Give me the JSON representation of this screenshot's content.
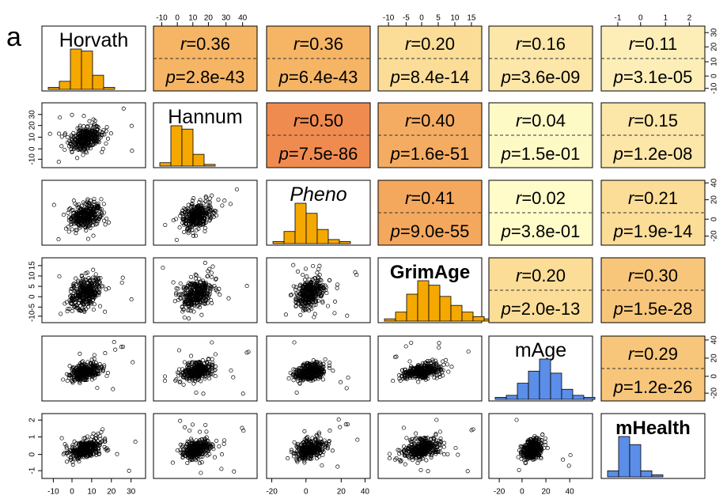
{
  "chart_data": {
    "type": "scatter",
    "panel_label": "a",
    "variables": [
      "Horvath",
      "Hannum",
      "Pheno",
      "GrimAge",
      "mAge",
      "mHealth"
    ],
    "label_styles": [
      "normal",
      "normal",
      "italic",
      "bold",
      "normal",
      "bold"
    ],
    "histogram_colors": [
      "#f5a800",
      "#f5a800",
      "#f5a800",
      "#f5a800",
      "#5b8ee8",
      "#5b8ee8"
    ],
    "histograms": [
      [
        1,
        4,
        20,
        19,
        7,
        1,
        0,
        0
      ],
      [
        2,
        24,
        22,
        7,
        1,
        0,
        0,
        0,
        0
      ],
      [
        1,
        6,
        20,
        15,
        7,
        2,
        1
      ],
      [
        1,
        4,
        12,
        18,
        16,
        11,
        7,
        4,
        2,
        1,
        1
      ],
      [
        1,
        2,
        8,
        14,
        20,
        13,
        5,
        2,
        1
      ],
      [
        3,
        20,
        16,
        3,
        1,
        0
      ]
    ],
    "correlations": [
      {
        "row": 0,
        "col": 1,
        "r": "0.36",
        "p": "2.8e-43",
        "color": "#f6b565"
      },
      {
        "row": 0,
        "col": 2,
        "r": "0.36",
        "p": "6.4e-43",
        "color": "#f6b565"
      },
      {
        "row": 0,
        "col": 3,
        "r": "0.20",
        "p": "8.4e-14",
        "color": "#fbdd97"
      },
      {
        "row": 0,
        "col": 4,
        "r": "0.16",
        "p": "3.6e-09",
        "color": "#fce6a8"
      },
      {
        "row": 0,
        "col": 5,
        "r": "0.11",
        "p": "3.1e-05",
        "color": "#fdeeb8"
      },
      {
        "row": 1,
        "col": 2,
        "r": "0.50",
        "p": "7.5e-86",
        "color": "#f08b50"
      },
      {
        "row": 1,
        "col": 3,
        "r": "0.40",
        "p": "1.6e-51",
        "color": "#f4ac62"
      },
      {
        "row": 1,
        "col": 4,
        "r": "0.04",
        "p": "1.5e-01",
        "color": "#fefac6"
      },
      {
        "row": 1,
        "col": 5,
        "r": "0.15",
        "p": "1.2e-08",
        "color": "#fce6a8"
      },
      {
        "row": 2,
        "col": 3,
        "r": "0.41",
        "p": "9.0e-55",
        "color": "#f4a85e"
      },
      {
        "row": 2,
        "col": 4,
        "r": "0.02",
        "p": "3.8e-01",
        "color": "#fffcc9"
      },
      {
        "row": 2,
        "col": 5,
        "r": "0.21",
        "p": "1.9e-14",
        "color": "#fbdd97"
      },
      {
        "row": 3,
        "col": 4,
        "r": "0.20",
        "p": "2.0e-13",
        "color": "#fbdd97"
      },
      {
        "row": 3,
        "col": 5,
        "r": "0.30",
        "p": "1.5e-28",
        "color": "#f8c67a"
      },
      {
        "row": 4,
        "col": 5,
        "r": "0.29",
        "p": "1.2e-26",
        "color": "#f8c67a"
      }
    ],
    "scatter_spread": {
      "Horvath": 0.45,
      "Hannum": 0.45,
      "Pheno": 0.45,
      "GrimAge": 0.55,
      "mAge": 0.3,
      "mHealth": 0.35
    },
    "axes": {
      "top": [
        {
          "col": 1,
          "ticks": [
            "-10",
            "0",
            "10",
            "20",
            "30",
            "40"
          ],
          "fracs": [
            0.08,
            0.23,
            0.38,
            0.53,
            0.7,
            0.86
          ]
        },
        {
          "col": 3,
          "ticks": [
            "-10",
            "-5",
            "0",
            "5",
            "10",
            "15"
          ],
          "fracs": [
            0.1,
            0.27,
            0.42,
            0.58,
            0.74,
            0.9
          ]
        },
        {
          "col": 5,
          "ticks": [
            "-1",
            "0",
            "1",
            "2"
          ],
          "fracs": [
            0.16,
            0.38,
            0.62,
            0.85
          ]
        }
      ],
      "bottom": [
        {
          "col": 0,
          "ticks": [
            "-10",
            "0",
            "10",
            "20",
            "30"
          ],
          "fracs": [
            0.11,
            0.29,
            0.48,
            0.67,
            0.86
          ]
        },
        {
          "col": 2,
          "ticks": [
            "-20",
            "0",
            "20",
            "40"
          ],
          "fracs": [
            0.05,
            0.38,
            0.72,
            0.95
          ]
        },
        {
          "col": 4,
          "ticks": [
            "-20",
            "0",
            "20",
            "40"
          ],
          "fracs": [
            0.1,
            0.32,
            0.55,
            0.78
          ]
        }
      ],
      "left": [
        {
          "row": 1,
          "ticks": [
            "30",
            "20",
            "10",
            "0",
            "-10"
          ],
          "fracs": [
            0.18,
            0.35,
            0.53,
            0.71,
            0.87
          ]
        },
        {
          "row": 3,
          "ticks": [
            "15",
            "10",
            "5",
            "0",
            "-5",
            "-10"
          ],
          "fracs": [
            0.12,
            0.28,
            0.44,
            0.6,
            0.76,
            0.9
          ]
        },
        {
          "row": 5,
          "ticks": [
            "2",
            "1",
            "0",
            "-1"
          ],
          "fracs": [
            0.1,
            0.36,
            0.63,
            0.88
          ]
        }
      ],
      "right": [
        {
          "row": 0,
          "ticks": [
            "30",
            "20",
            "10",
            "0",
            "-10"
          ],
          "fracs": [
            0.1,
            0.32,
            0.55,
            0.77,
            0.96
          ]
        },
        {
          "row": 2,
          "ticks": [
            "40",
            "20",
            "0",
            "-20"
          ],
          "fracs": [
            0.04,
            0.3,
            0.6,
            0.86
          ]
        },
        {
          "row": 4,
          "ticks": [
            "40",
            "20",
            "0",
            "-20"
          ],
          "fracs": [
            0.06,
            0.34,
            0.62,
            0.88
          ]
        }
      ]
    }
  }
}
